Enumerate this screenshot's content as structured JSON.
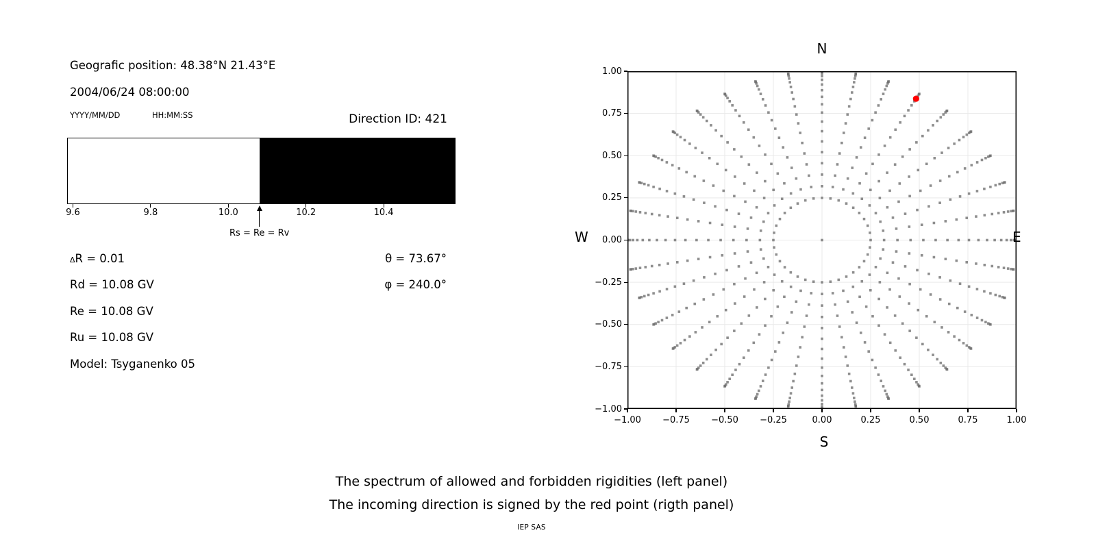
{
  "left_panel": {
    "geographic_position": "Geografic position: 48.38°N 21.43°E",
    "datetime": "2004/06/24 08:00:00",
    "date_format_label": "YYYY/MM/DD",
    "time_format_label": "HH:MM:SS",
    "direction_id_label": "Direction ID: 421",
    "delta_symbol": "Δ",
    "delta_r_rest": "R = 0.01",
    "rd": "Rd = 10.08 GV",
    "re": "Re = 10.08 GV",
    "ru": "Ru = 10.08 GV",
    "model": "Model: Tsyganenko 05",
    "theta": "θ = 73.67°",
    "phi": "φ = 240.0°"
  },
  "chart_data": [
    {
      "type": "bar",
      "title": "Spectrum of allowed and forbidden rigidities",
      "x_range": [
        9.585,
        10.585
      ],
      "x_ticks": [
        9.6,
        9.8,
        10.0,
        10.2,
        10.4
      ],
      "tick_decimals": 1,
      "regions": [
        {
          "label": "allowed",
          "from": 9.585,
          "to": 10.08,
          "color": "#ffffff"
        },
        {
          "label": "forbidden",
          "from": 10.08,
          "to": 10.585,
          "color": "#000000"
        }
      ],
      "marker": {
        "value": 10.08,
        "label": "Rs = Re = Rv"
      }
    },
    {
      "type": "scatter",
      "title": "Incoming direction map",
      "xlim": [
        -1,
        1
      ],
      "ylim": [
        -1,
        1
      ],
      "x_ticks": [
        -1.0,
        -0.75,
        -0.5,
        -0.25,
        0.0,
        0.25,
        0.5,
        0.75,
        1.0
      ],
      "y_ticks": [
        -1.0,
        -0.75,
        -0.5,
        -0.25,
        0.0,
        0.25,
        0.5,
        0.75,
        1.0
      ],
      "tick_decimals": 2,
      "grid": true,
      "grid_values": [
        -0.75,
        -0.5,
        -0.25,
        0.0,
        0.25,
        0.5,
        0.75
      ],
      "grid_color": "#e9e9e9",
      "compass_labels": {
        "north": "N",
        "south": "S",
        "east": "E",
        "west": "W"
      },
      "spokes": {
        "count": 36,
        "azimuth_start_deg": 0,
        "azimuth_step_deg": 10,
        "r_inner": 0.25,
        "r_outer": 1.0,
        "points_per_spoke": 18,
        "radial_easing": "sin",
        "note": "dots cluster densely at outer tip"
      },
      "origin_point": {
        "x": 0,
        "y": 0
      },
      "dot_color": "#6e6e6e",
      "dot_opacity": 0.78,
      "dot_size_px": 3.6,
      "red_point": {
        "x": 0.4835,
        "y": 0.8374,
        "r": 0.967,
        "azimuth_deg_from_north": 30,
        "color": "#ff0000",
        "label": "incoming direction"
      }
    }
  ],
  "caption": {
    "line1": "The spectrum of allowed and forbidden rigidities (left panel)",
    "line2": "The incoming direction is signed by the red point (rigth panel)",
    "credit": "IEP SAS"
  }
}
